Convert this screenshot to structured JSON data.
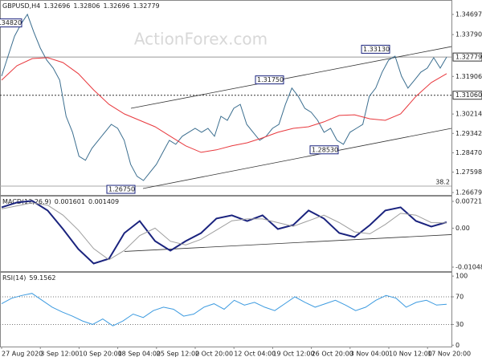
{
  "chart_data": [
    {
      "type": "line",
      "title": "GBPUSD,H4",
      "header_values": [
        1.32696,
        1.32806,
        1.32696,
        1.32779
      ],
      "watermark": "ActionForex.com",
      "ylim": [
        1.26571,
        1.35347
      ],
      "yticks": [
        1.34697,
        {
          "value": 1.3379,
          "label": "1.33790"
        },
        1.31906,
        1.30214,
        1.29342,
        {
          "value": 1.2847,
          "label": "1.28470"
        },
        1.27598,
        1.26679
      ],
      "current_price": 1.32779,
      "level": {
        "value": 1.3106,
        "label": "1.31060"
      },
      "fib_line": 1.2697,
      "fib_label": 38.2,
      "series": [
        {
          "color": "#3b6e8f",
          "values": [
            1.3192,
            1.3282,
            1.3372,
            1.3426,
            1.347,
            1.339,
            1.3318,
            1.3264,
            1.3228,
            1.3174,
            1.3011,
            1.2939,
            1.2831,
            1.2813,
            1.2867,
            1.2903,
            1.2939,
            1.2975,
            1.2957,
            1.2903,
            1.2795,
            1.2741,
            1.2722,
            1.2759,
            1.2795,
            1.2849,
            1.2903,
            1.2885,
            1.2921,
            1.2939,
            1.2957,
            1.2939,
            1.2957,
            1.2921,
            1.3011,
            1.2993,
            1.3047,
            1.3065,
            1.2975,
            1.2939,
            1.2903,
            1.2921,
            1.2957,
            1.2975,
            1.3065,
            1.3138,
            1.3101,
            1.3047,
            1.3029,
            1.2993,
            1.2939,
            1.2957,
            1.2903,
            1.2885,
            1.2939,
            1.2957,
            1.2975,
            1.3101,
            1.3138,
            1.321,
            1.3264,
            1.3282,
            1.3192,
            1.3138,
            1.3174,
            1.321,
            1.3228,
            1.3275,
            1.3228,
            1.32779
          ]
        },
        {
          "color": "#e8383d",
          "values": [
            1.3174,
            1.3239,
            1.3271,
            1.3275,
            1.3253,
            1.3203,
            1.313,
            1.3065,
            1.3022,
            1.2993,
            1.2964,
            1.2921,
            1.2878,
            1.2849,
            1.286,
            1.2878,
            1.2892,
            1.2914,
            1.2939,
            1.2957,
            1.2964,
            1.2986,
            1.3015,
            1.3018,
            1.3,
            1.2993,
            1.3022,
            1.3101,
            1.3163,
            1.3203
          ]
        }
      ],
      "trendlines": [
        [
          1.3047,
          1.3325
        ],
        [
          1.2686,
          1.2957
        ]
      ],
      "annotations": [
        {
          "value": 1.3482,
          "label": "1.34820"
        },
        {
          "value": 1.3313,
          "label": "1.33130"
        },
        {
          "value": 1.3175,
          "label": "1.31750"
        },
        {
          "value": 1.2853,
          "label": "1.28530"
        },
        {
          "value": 1.2675,
          "label": "1.26750"
        }
      ]
    },
    {
      "type": "line",
      "title": "MACD(12,26,9)",
      "header_values": [
        0.001601,
        0.001409
      ],
      "ylim": [
        -0.01156,
        0.00873
      ],
      "yticks": [
        0.007213,
        {
          "value": 0,
          "label": "0.00"
        },
        -0.01048
      ],
      "series": [
        {
          "color": "#1a237e",
          "values": [
            0.00562,
            0.00691,
            0.00734,
            0.00475,
            -0.00022,
            -0.00562,
            -0.0095,
            -0.00821,
            -0.0013,
            0.00194,
            -0.00346,
            -0.00605,
            -0.00346,
            -0.0013,
            0.00259,
            0.00346,
            0.00194,
            0.00346,
            -0.00022,
            0.00086,
            0.00475,
            0.00259,
            -0.0013,
            -0.00238,
            0.00086,
            0.00475,
            0.00562,
            0.00194,
            0.00043,
            0.001601
          ]
        },
        {
          "color": "#9e9e9e",
          "values": [
            0.0052,
            0.006,
            0.0068,
            0.0062,
            0.0035,
            -0.0005,
            -0.0055,
            -0.0085,
            -0.006,
            -0.002,
            0,
            -0.0035,
            -0.0045,
            -0.003,
            -0.0005,
            0.002,
            0.0025,
            0.0025,
            0.0015,
            0.0005,
            0.002,
            0.0035,
            0.0015,
            -0.001,
            -0.0015,
            0.001,
            0.004,
            0.0035,
            0.0015,
            0.001409
          ]
        }
      ],
      "trendlines": [
        [
          -0.00626,
          -0.00173
        ]
      ]
    },
    {
      "type": "line",
      "title": "RSI(14)",
      "header_values": [
        59.1562
      ],
      "ylim": [
        -2,
        106
      ],
      "yticks": [
        100,
        70,
        30,
        0
      ],
      "levels": [
        70,
        30
      ],
      "series": [
        {
          "color": "#3d9be0",
          "values": [
            60,
            68,
            72,
            75,
            65,
            55,
            48,
            42,
            35,
            30,
            38,
            28,
            35,
            45,
            40,
            50,
            55,
            52,
            42,
            45,
            55,
            60,
            52,
            65,
            58,
            62,
            55,
            50,
            60,
            70,
            62,
            55,
            60,
            65,
            58,
            50,
            55,
            65,
            72,
            68,
            55,
            62,
            65,
            58,
            59.1562
          ]
        }
      ],
      "time_labels": [
        "27 Aug 2020",
        "3 Sep 12:00",
        "10 Sep 20:00",
        "18 Sep 04:00",
        "25 Sep 12:00",
        "2 Oct 20:00",
        "12 Oct 04:00",
        "19 Oct 12:00",
        "26 Oct 20:00",
        "3 Nov 04:00",
        "10 Nov 12:00",
        "17 Nov 20:00"
      ]
    }
  ]
}
